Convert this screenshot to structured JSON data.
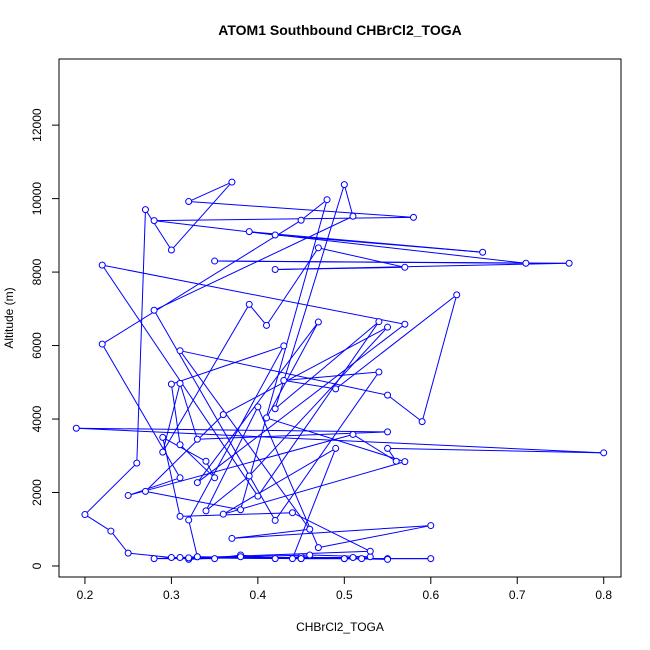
{
  "chart_data": {
    "type": "scatter",
    "title": "ATOM1 Southbound CHBrCl2_TOGA",
    "xlabel": "CHBrCl2_TOGA",
    "ylabel": "Altitude (m)",
    "xlim": [
      0.17,
      0.82
    ],
    "ylim": [
      -300,
      13800
    ],
    "xticks": [
      0.2,
      0.3,
      0.4,
      0.5,
      0.6,
      0.7,
      0.8
    ],
    "xtick_labels": [
      "0.2",
      "0.3",
      "0.4",
      "0.5",
      "0.6",
      "0.7",
      "0.8"
    ],
    "yticks": [
      0,
      2000,
      4000,
      6000,
      8000,
      10000,
      12000
    ],
    "ytick_labels": [
      "0",
      "2000",
      "4000",
      "6000",
      "8000",
      "10000",
      "12000"
    ],
    "grid": false,
    "legend": "none",
    "series": [
      {
        "color": "#0000ff",
        "marker": "open-circle",
        "connected": true,
        "points": [
          [
            0.33,
            250
          ],
          [
            0.28,
            200
          ],
          [
            0.35,
            200
          ],
          [
            0.38,
            300
          ],
          [
            0.42,
            200
          ],
          [
            0.45,
            250
          ],
          [
            0.5,
            200
          ],
          [
            0.55,
            200
          ],
          [
            0.6,
            200
          ],
          [
            0.45,
            200
          ],
          [
            0.31,
            230
          ],
          [
            0.32,
            180
          ],
          [
            0.38,
            250
          ],
          [
            0.46,
            300
          ],
          [
            0.53,
            250
          ],
          [
            0.52,
            200
          ],
          [
            0.45,
            200
          ],
          [
            0.32,
            220
          ],
          [
            0.53,
            400
          ],
          [
            0.44,
            1450
          ],
          [
            0.31,
            1350
          ],
          [
            0.29,
            3500
          ],
          [
            0.34,
            2850
          ],
          [
            0.35,
            2400
          ],
          [
            0.31,
            3300
          ],
          [
            0.3,
            4950
          ],
          [
            0.43,
            5990
          ],
          [
            0.32,
            1250
          ],
          [
            0.33,
            250
          ],
          [
            0.5,
            200
          ],
          [
            0.55,
            180
          ],
          [
            0.51,
            230
          ],
          [
            0.3,
            230
          ],
          [
            0.25,
            350
          ],
          [
            0.23,
            950
          ],
          [
            0.2,
            1400
          ],
          [
            0.26,
            2800
          ],
          [
            0.27,
            9700
          ],
          [
            0.3,
            8600
          ],
          [
            0.37,
            10450
          ],
          [
            0.32,
            9920
          ],
          [
            0.58,
            9490
          ],
          [
            0.28,
            9400
          ],
          [
            0.42,
            9010
          ],
          [
            0.66,
            8540
          ],
          [
            0.39,
            9100
          ],
          [
            0.71,
            8240
          ],
          [
            0.35,
            8300
          ],
          [
            0.76,
            8240
          ],
          [
            0.42,
            8070
          ],
          [
            0.57,
            8130
          ],
          [
            0.47,
            8660
          ],
          [
            0.41,
            6550
          ],
          [
            0.39,
            7120
          ],
          [
            0.29,
            3100
          ],
          [
            0.31,
            4970
          ],
          [
            0.33,
            3450
          ],
          [
            0.55,
            3650
          ],
          [
            0.19,
            3750
          ],
          [
            0.8,
            3080
          ],
          [
            0.55,
            3200
          ],
          [
            0.56,
            2850
          ],
          [
            0.51,
            3580
          ],
          [
            0.25,
            1920
          ],
          [
            0.31,
            2400
          ],
          [
            0.22,
            6040
          ],
          [
            0.45,
            9410
          ],
          [
            0.48,
            9970
          ],
          [
            0.38,
            1530
          ],
          [
            0.27,
            2030
          ],
          [
            0.36,
            4120
          ],
          [
            0.55,
            6500
          ],
          [
            0.39,
            2450
          ],
          [
            0.34,
            1500
          ],
          [
            0.4,
            4330
          ],
          [
            0.47,
            500
          ],
          [
            0.6,
            1100
          ],
          [
            0.37,
            750
          ],
          [
            0.46,
            1000
          ],
          [
            0.31,
            5860
          ],
          [
            0.55,
            4650
          ],
          [
            0.59,
            3930
          ],
          [
            0.63,
            7380
          ],
          [
            0.49,
            4820
          ],
          [
            0.43,
            5050
          ],
          [
            0.54,
            5280
          ],
          [
            0.42,
            1240
          ],
          [
            0.28,
            6960
          ],
          [
            0.51,
            9520
          ],
          [
            0.5,
            10380
          ],
          [
            0.42,
            4280
          ],
          [
            0.54,
            6650
          ],
          [
            0.4,
            1900
          ],
          [
            0.22,
            8190
          ],
          [
            0.57,
            6580
          ],
          [
            0.33,
            2270
          ],
          [
            0.47,
            6640
          ],
          [
            0.41,
            4030
          ],
          [
            0.57,
            2840
          ],
          [
            0.36,
            1410
          ],
          [
            0.49,
            3200
          ],
          [
            0.44,
            200
          ]
        ]
      }
    ]
  }
}
